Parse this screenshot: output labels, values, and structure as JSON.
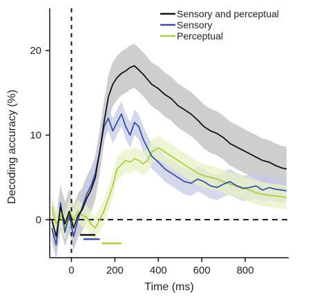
{
  "chart_data": {
    "type": "line",
    "xlabel": "Time (ms)",
    "ylabel": "Decoding accuracy (%)",
    "xlim": [
      -100,
      1000
    ],
    "ylim": [
      -4.5,
      25
    ],
    "xticks": [
      0,
      200,
      400,
      600,
      800
    ],
    "yticks": [
      0,
      10,
      20
    ],
    "reference_lines": {
      "x": 0,
      "y": 0
    },
    "legend_position": "top-right",
    "series": [
      {
        "name": "Sensory and perceptual",
        "color": "#111111",
        "band_color": "#bdbdbd",
        "x": [
          -90,
          -70,
          -50,
          -30,
          -10,
          10,
          30,
          50,
          70,
          90,
          110,
          130,
          150,
          170,
          190,
          210,
          230,
          250,
          270,
          290,
          310,
          330,
          350,
          370,
          400,
          430,
          460,
          490,
          520,
          550,
          580,
          610,
          640,
          670,
          700,
          730,
          760,
          790,
          820,
          850,
          880,
          910,
          940,
          970,
          990
        ],
        "y": [
          0.0,
          -2.0,
          1.5,
          -0.5,
          1.0,
          -1.0,
          0.5,
          1.2,
          2.5,
          3.5,
          5.0,
          8.0,
          11.5,
          14.5,
          16.0,
          16.8,
          17.3,
          17.6,
          18.0,
          18.2,
          17.7,
          17.2,
          16.6,
          16.0,
          15.5,
          14.8,
          14.3,
          13.5,
          13.0,
          12.5,
          11.8,
          11.0,
          10.5,
          10.2,
          9.7,
          9.0,
          8.6,
          8.2,
          7.8,
          7.4,
          7.0,
          6.8,
          6.4,
          6.1,
          6.0
        ],
        "ci": 2.6
      },
      {
        "name": "Sensory",
        "color": "#3b4f9c",
        "band_color": "#c4cbe6",
        "x": [
          -90,
          -70,
          -50,
          -30,
          -10,
          10,
          30,
          50,
          70,
          90,
          110,
          130,
          150,
          170,
          190,
          210,
          230,
          250,
          270,
          290,
          310,
          330,
          350,
          370,
          400,
          430,
          460,
          490,
          520,
          550,
          580,
          610,
          640,
          670,
          700,
          730,
          760,
          790,
          820,
          850,
          880,
          910,
          940,
          970,
          990
        ],
        "y": [
          -1.0,
          -3.0,
          2.0,
          -1.5,
          0.5,
          -2.0,
          0.0,
          1.5,
          3.0,
          4.0,
          5.5,
          8.0,
          11.0,
          12.0,
          10.5,
          11.5,
          12.5,
          11.0,
          10.0,
          11.5,
          11.0,
          9.5,
          8.5,
          7.5,
          6.8,
          6.0,
          5.5,
          5.0,
          4.5,
          4.3,
          4.8,
          4.5,
          4.0,
          3.8,
          4.2,
          4.5,
          4.0,
          3.7,
          3.8,
          4.0,
          3.5,
          3.8,
          3.6,
          3.5,
          3.4
        ],
        "ci": 1.5
      },
      {
        "name": "Perceptual",
        "color": "#a6d040",
        "band_color": "#e7f2c5",
        "x": [
          -90,
          -70,
          -50,
          -30,
          -10,
          10,
          30,
          50,
          70,
          90,
          110,
          130,
          150,
          170,
          190,
          210,
          230,
          250,
          270,
          290,
          310,
          330,
          350,
          370,
          400,
          430,
          460,
          490,
          520,
          550,
          580,
          610,
          640,
          670,
          700,
          730,
          760,
          790,
          820,
          850,
          880,
          910,
          940,
          970,
          990
        ],
        "y": [
          1.5,
          -0.5,
          0.5,
          -1.0,
          1.0,
          0.0,
          1.0,
          0.5,
          0.3,
          -0.5,
          -1.0,
          0.0,
          1.0,
          2.5,
          4.0,
          6.0,
          6.5,
          7.0,
          6.8,
          7.2,
          7.0,
          6.6,
          7.0,
          8.0,
          8.5,
          8.0,
          7.5,
          7.0,
          6.5,
          6.0,
          5.5,
          5.2,
          5.0,
          4.8,
          4.5,
          4.2,
          4.0,
          3.8,
          3.5,
          3.2,
          3.0,
          2.9,
          2.8,
          2.7,
          2.6
        ],
        "ci": 1.4
      }
    ],
    "significance_bars": [
      {
        "series": "Sensory and perceptual",
        "start": 40,
        "end": 110,
        "y": -1.8
      },
      {
        "series": "Sensory",
        "start": 55,
        "end": 130,
        "y": -2.3
      },
      {
        "series": "Perceptual",
        "start": 140,
        "end": 230,
        "y": -2.8
      }
    ]
  }
}
